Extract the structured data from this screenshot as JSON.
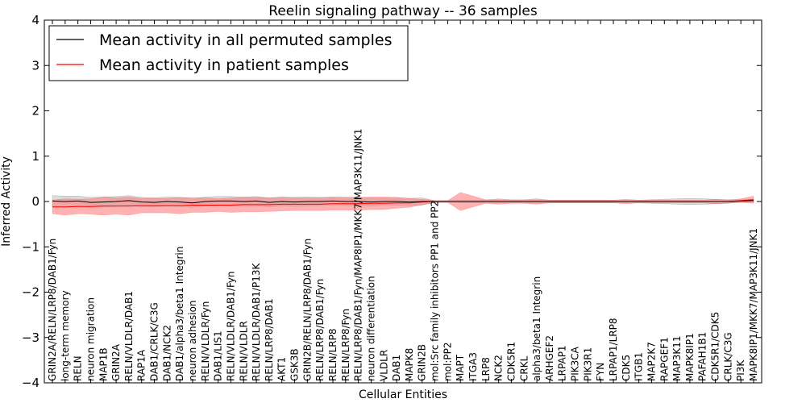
{
  "chart_data": {
    "type": "line",
    "title": "Reelin signaling pathway -- 36 samples",
    "xlabel": "Cellular Entities",
    "ylabel": "Inferred Activity",
    "ylim": [
      -4,
      4
    ],
    "yticks": [
      4,
      3,
      2,
      1,
      0,
      -1,
      -2,
      -3,
      -4
    ],
    "ytick_labels": [
      "4",
      "3",
      "2",
      "1",
      "0",
      "−1",
      "−2",
      "−3",
      "−4"
    ],
    "legend_position": "top-left",
    "grid": false,
    "categories": [
      "GRIN2A/RELN/LRP8/DAB1/Fyn",
      "long-term memory",
      "RELN",
      "neuron migration",
      "MAP1B",
      "GRIN2A",
      "RELN/VLDLR/DAB1",
      "RAP1A",
      "DAB1/CRLK/C3G",
      "DAB1/NCK2",
      "DAB1/alpha3/beta1 Integrin",
      "neuron adhesion",
      "RELN/VLDLR/Fyn",
      "DAB1/LIS1",
      "RELN/VLDLR/DAB1/Fyn",
      "RELN/VLDLR",
      "RELN/VLDLR/DAB1/P13K",
      "RELN/LRP8/DAB1",
      "AKT1",
      "GSK3B",
      "GRIN2B/RELN/LRP8/DAB1/Fyn",
      "RELN/LRP8/DAB1/Fyn",
      "RELN/LRP8",
      "RELN/LRP8/Fyn",
      "RELN/LRP8/DAB1/Fyn/MAP8IP1/MKK7/MAP3K11/JNK1",
      "neuron differentiation",
      "VLDLR",
      "DAB1",
      "MAPK8",
      "GRIN2B",
      "mol:Src family inhibitors PP1 and PP2",
      "mol:PP2",
      "MAPT",
      "ITGA3",
      "LRP8",
      "NCK2",
      "CDK5R1",
      "CRKL",
      "alpha3/beta1 Integrin",
      "ARHGEF2",
      "LRPAP1",
      "PIK3CA",
      "PIK3R1",
      "FYN",
      "LRPAP1/LRP8",
      "CDK5",
      "ITGB1",
      "MAP2K7",
      "RAPGEF1",
      "MAP3K11",
      "MAPK8IP1",
      "PAFAH1B1",
      "CDK5R1/CDK5",
      "CRLK/C3G",
      "PI3K",
      "MAPK8IP1/MKK7/MAP3K11/JNK1"
    ],
    "series": [
      {
        "name": "Mean activity in all permuted samples",
        "color": "#000000",
        "band_color": "#bfbfbf",
        "values": [
          0.01,
          0.0,
          0.01,
          -0.02,
          -0.01,
          0.0,
          0.02,
          -0.01,
          -0.02,
          0.0,
          -0.01,
          -0.03,
          0.0,
          0.01,
          0.01,
          0.0,
          0.01,
          -0.02,
          0.0,
          -0.01,
          0.0,
          0.0,
          0.01,
          0.0,
          0.0,
          -0.01,
          0.0,
          0.0,
          -0.01,
          0.0,
          0.0,
          0.0,
          0.0,
          0.0,
          0.0,
          0.0,
          0.0,
          0.0,
          0.0,
          0.0,
          0.0,
          0.0,
          0.0,
          0.0,
          0.0,
          0.0,
          0.0,
          0.0,
          0.0,
          0.0,
          0.0,
          0.0,
          0.0,
          0.0,
          0.01,
          0.02
        ],
        "band": [
          0.12,
          0.12,
          0.11,
          0.11,
          0.11,
          0.11,
          0.11,
          0.1,
          0.1,
          0.1,
          0.1,
          0.1,
          0.1,
          0.1,
          0.1,
          0.1,
          0.1,
          0.1,
          0.1,
          0.1,
          0.1,
          0.09,
          0.09,
          0.09,
          0.09,
          0.09,
          0.08,
          0.08,
          0.08,
          0.08,
          0.02,
          0.02,
          0.03,
          0.03,
          0.03,
          0.03,
          0.03,
          0.03,
          0.03,
          0.03,
          0.03,
          0.03,
          0.03,
          0.03,
          0.03,
          0.03,
          0.03,
          0.04,
          0.05,
          0.06,
          0.07,
          0.06,
          0.05,
          0.04,
          0.03,
          0.03
        ]
      },
      {
        "name": "Mean activity in patient samples",
        "color": "#ff0000",
        "band_color": "#ff7f7f",
        "values": [
          -0.12,
          -0.12,
          -0.11,
          -0.11,
          -0.1,
          -0.1,
          -0.1,
          -0.09,
          -0.09,
          -0.09,
          -0.09,
          -0.08,
          -0.08,
          -0.08,
          -0.08,
          -0.07,
          -0.07,
          -0.07,
          -0.06,
          -0.06,
          -0.06,
          -0.06,
          -0.05,
          -0.05,
          -0.05,
          -0.04,
          -0.04,
          -0.03,
          -0.03,
          -0.01,
          0.0,
          0.0,
          0.0,
          0.0,
          0.0,
          0.0,
          0.0,
          0.0,
          0.0,
          0.0,
          0.0,
          0.0,
          0.0,
          0.0,
          0.0,
          0.0,
          0.0,
          0.0,
          0.0,
          0.0,
          0.0,
          0.0,
          0.0,
          0.0,
          0.02,
          0.04
        ],
        "band": [
          0.15,
          0.18,
          0.16,
          0.17,
          0.2,
          0.18,
          0.2,
          0.16,
          0.16,
          0.16,
          0.18,
          0.16,
          0.16,
          0.14,
          0.16,
          0.16,
          0.16,
          0.15,
          0.15,
          0.14,
          0.14,
          0.14,
          0.14,
          0.14,
          0.14,
          0.14,
          0.14,
          0.12,
          0.1,
          0.06,
          0.02,
          0.02,
          0.2,
          0.12,
          0.04,
          0.06,
          0.04,
          0.04,
          0.06,
          0.03,
          0.03,
          0.03,
          0.03,
          0.03,
          0.03,
          0.05,
          0.03,
          0.03,
          0.03,
          0.03,
          0.03,
          0.03,
          0.05,
          0.03,
          0.04,
          0.08
        ]
      }
    ]
  }
}
